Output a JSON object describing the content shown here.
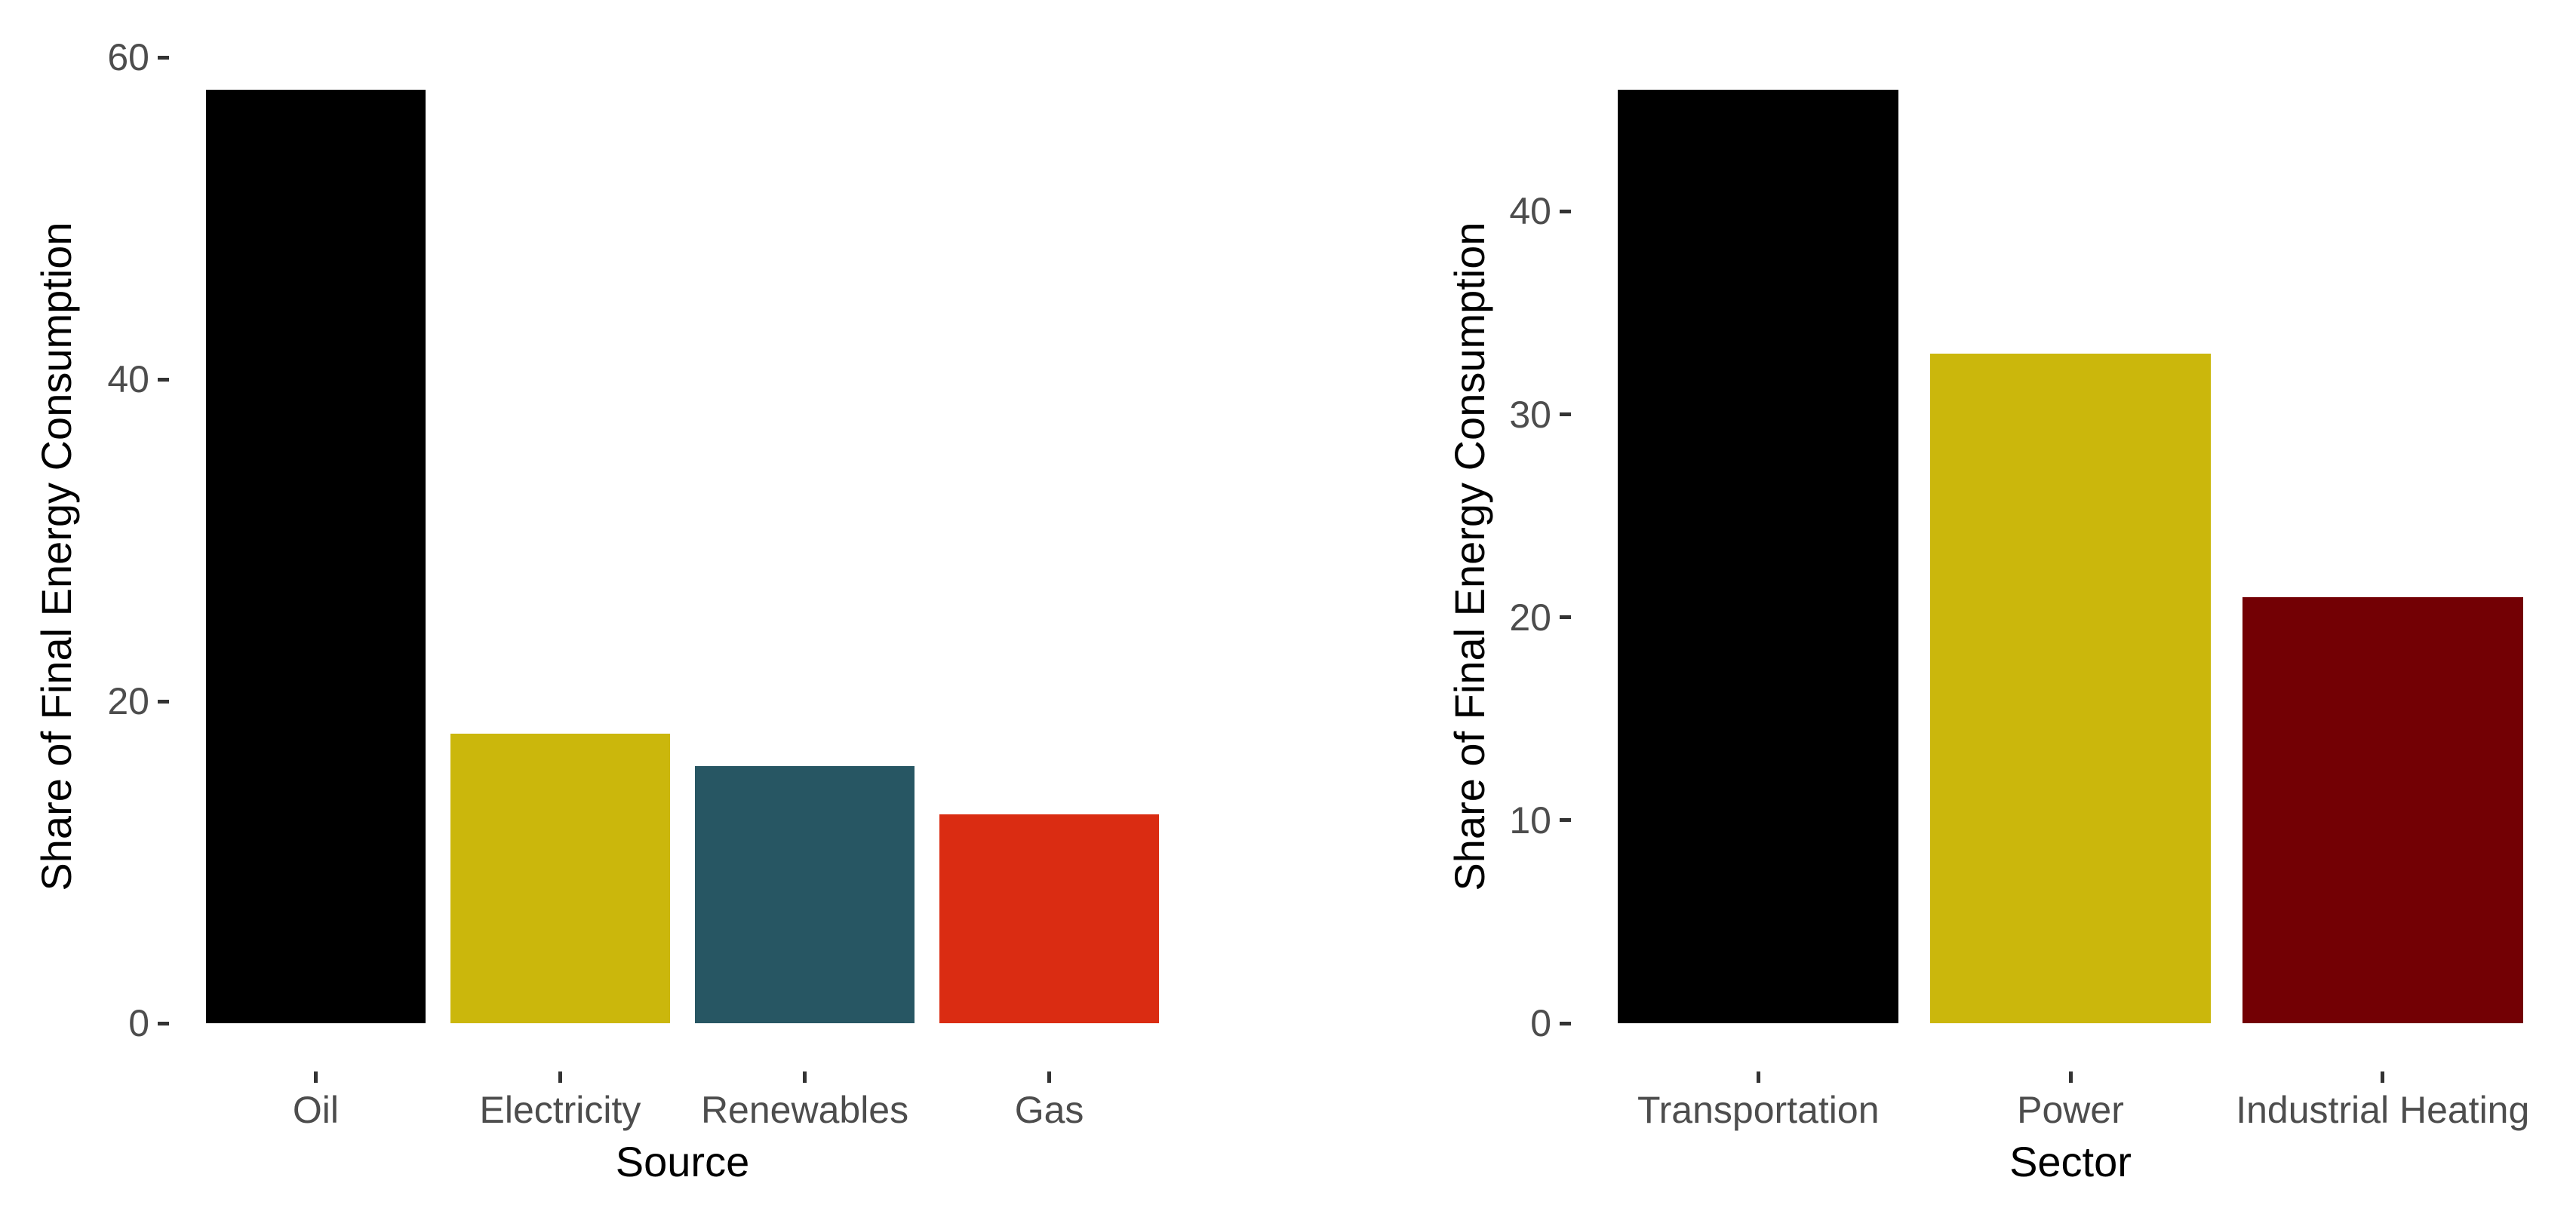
{
  "figure": {
    "background": "#FFFFFF",
    "axis_text_color": "#4D4D4D",
    "tick_mark_color": "#333333",
    "axis_title_color": "#000000"
  },
  "chart_data": [
    {
      "type": "bar",
      "title": "",
      "xlabel": "Source",
      "ylabel": "Share of Final Energy Consumption",
      "categories": [
        "Oil",
        "Electricity",
        "Renewables",
        "Gas"
      ],
      "values": [
        58,
        18,
        16,
        13
      ],
      "bar_colors": [
        "#000000",
        "#CBB70C",
        "#275663",
        "#DA2C12"
      ],
      "yticks": [
        0,
        20,
        40,
        60
      ],
      "ylim": [
        0,
        61
      ],
      "grid": false,
      "legend": "none"
    },
    {
      "type": "bar",
      "title": "",
      "xlabel": "Sector",
      "ylabel": "Share of Final Energy Consumption",
      "categories": [
        "Transportation",
        "Power",
        "Industrial Heating"
      ],
      "values": [
        46,
        33,
        21
      ],
      "bar_colors": [
        "#000000",
        "#CBB70C",
        "#730004"
      ],
      "yticks": [
        0,
        10,
        20,
        30,
        40
      ],
      "ylim": [
        0,
        48
      ],
      "grid": false,
      "legend": "none"
    }
  ]
}
